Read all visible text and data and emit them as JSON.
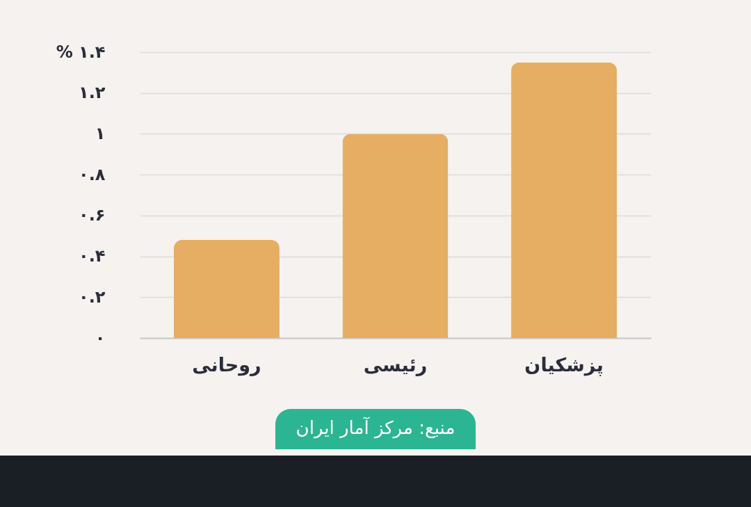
{
  "chart_data": {
    "type": "bar",
    "categories": [
      "روحانی",
      "رئیسی",
      "پزشکیان"
    ],
    "values": [
      0.48,
      1.0,
      1.35
    ],
    "color": "#e5ae62",
    "ylim": [
      0,
      1.4
    ],
    "yticks": [
      {
        "value": 0,
        "label": "۰"
      },
      {
        "value": 0.2,
        "label": "۰.۲"
      },
      {
        "value": 0.4,
        "label": "۰.۴"
      },
      {
        "value": 0.6,
        "label": "۰.۶"
      },
      {
        "value": 0.8,
        "label": "۰.۸"
      },
      {
        "value": 1,
        "label": "۱"
      },
      {
        "value": 1.2,
        "label": "۱.۲"
      },
      {
        "value": 1.4,
        "label": "% ۱.۴"
      }
    ],
    "grid": "y",
    "annotations": [
      "منبع: مرکز آمار ایران"
    ]
  }
}
